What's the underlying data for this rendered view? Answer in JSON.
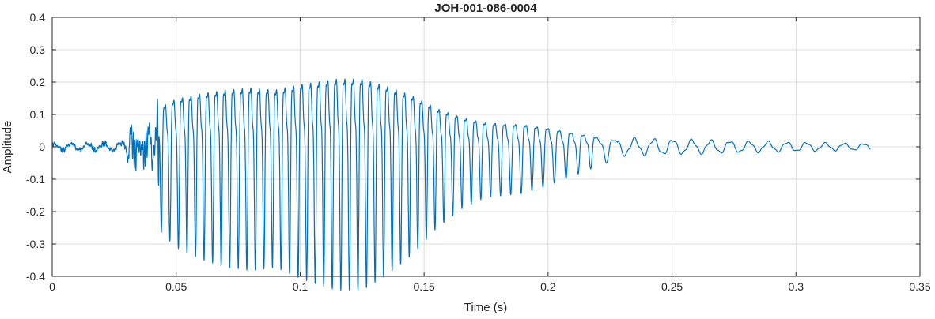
{
  "chart_data": {
    "type": "line",
    "title": "JOH-001-086-0004",
    "xlabel": "Time (s)",
    "ylabel": "Amplitude",
    "xlim": [
      0,
      0.35
    ],
    "ylim": [
      -0.4,
      0.4
    ],
    "xticks": [
      0,
      0.05,
      0.1,
      0.15,
      0.2,
      0.25,
      0.3,
      0.35
    ],
    "yticks": [
      -0.4,
      -0.3,
      -0.2,
      -0.1,
      0,
      0.1,
      0.2,
      0.3,
      0.4
    ],
    "grid": true,
    "legend": "none",
    "line_color": "#0072BD",
    "grid_color": "#dcdcdc",
    "frame_color": "#262626",
    "tick_label_color": "#262626",
    "signal": {
      "description": "speech-like waveform burst: quiet noise floor, plosive onset near 0.033 s, voiced segment ~0.044-0.22 s peaking ~0.37 around 0.115-0.13 s, decaying ripple tail to 0.33 s",
      "t_start": 0,
      "t_end": 0.33,
      "carrier_hz_voiced": 290,
      "carrier_hz_tail": 130,
      "envelope": [
        {
          "t": 0.0,
          "a": 0.012
        },
        {
          "t": 0.028,
          "a": 0.015
        },
        {
          "t": 0.032,
          "a": 0.06
        },
        {
          "t": 0.036,
          "a": 0.05
        },
        {
          "t": 0.041,
          "a": 0.07
        },
        {
          "t": 0.044,
          "a": 0.22
        },
        {
          "t": 0.05,
          "a": 0.26
        },
        {
          "t": 0.06,
          "a": 0.29
        },
        {
          "t": 0.07,
          "a": 0.31
        },
        {
          "t": 0.08,
          "a": 0.32
        },
        {
          "t": 0.09,
          "a": 0.31
        },
        {
          "t": 0.1,
          "a": 0.34
        },
        {
          "t": 0.115,
          "a": 0.37
        },
        {
          "t": 0.125,
          "a": 0.37
        },
        {
          "t": 0.135,
          "a": 0.33
        },
        {
          "t": 0.145,
          "a": 0.28
        },
        {
          "t": 0.155,
          "a": 0.21
        },
        {
          "t": 0.165,
          "a": 0.16
        },
        {
          "t": 0.175,
          "a": 0.13
        },
        {
          "t": 0.19,
          "a": 0.12
        },
        {
          "t": 0.2,
          "a": 0.1
        },
        {
          "t": 0.21,
          "a": 0.075
        },
        {
          "t": 0.22,
          "a": 0.05
        },
        {
          "t": 0.23,
          "a": 0.028
        },
        {
          "t": 0.25,
          "a": 0.024
        },
        {
          "t": 0.28,
          "a": 0.018
        },
        {
          "t": 0.31,
          "a": 0.013
        },
        {
          "t": 0.33,
          "a": 0.01
        }
      ]
    }
  }
}
